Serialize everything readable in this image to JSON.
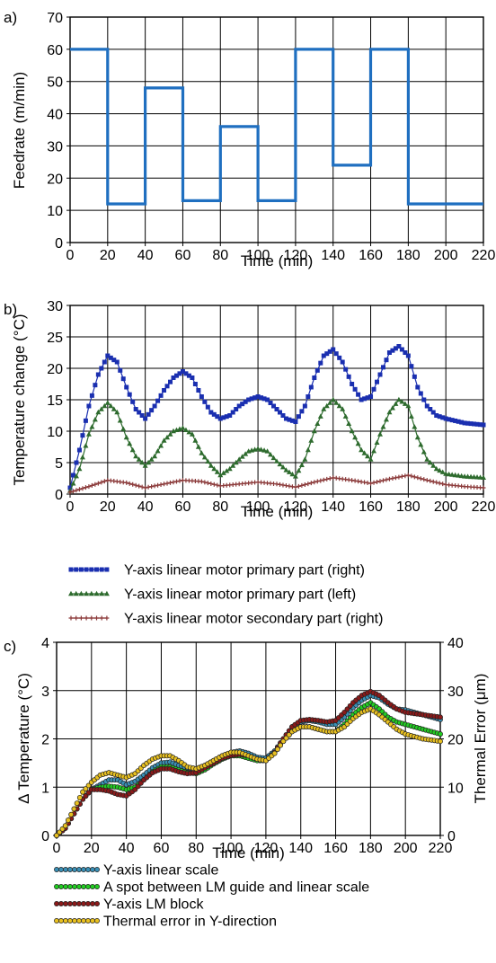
{
  "chart_data": [
    {
      "panel_label": "a)",
      "type": "line",
      "xlabel": "Time (min)",
      "ylabel": "Feedrate (m/min)",
      "xlim": [
        0,
        220
      ],
      "ylim": [
        0,
        70
      ],
      "xticks": [
        "0",
        "20",
        "40",
        "60",
        "80",
        "100",
        "120",
        "140",
        "160",
        "180",
        "200",
        "220"
      ],
      "yticks": [
        "0",
        "10",
        "20",
        "30",
        "40",
        "50",
        "60",
        "70"
      ],
      "grid": true,
      "series": [
        {
          "color": "#1f6fc0",
          "style": "step",
          "x": [
            0,
            20,
            20,
            40,
            40,
            60,
            60,
            80,
            80,
            100,
            100,
            120,
            120,
            140,
            140,
            160,
            160,
            180,
            180,
            220
          ],
          "y": [
            60,
            60,
            12,
            12,
            48,
            48,
            13,
            13,
            36,
            36,
            13,
            13,
            60,
            60,
            24,
            24,
            60,
            60,
            12,
            12
          ]
        }
      ]
    },
    {
      "panel_label": "b)",
      "type": "line",
      "xlabel": "Time (min)",
      "ylabel": "Temperature change (°C)",
      "xlim": [
        0,
        220
      ],
      "ylim": [
        0,
        30
      ],
      "xticks": [
        "0",
        "20",
        "40",
        "60",
        "80",
        "100",
        "120",
        "140",
        "160",
        "180",
        "200",
        "220"
      ],
      "yticks": [
        "0",
        "5",
        "10",
        "15",
        "20",
        "25",
        "30"
      ],
      "grid": true,
      "legend_position": "below",
      "series": [
        {
          "name": "Y-axis linear motor primary part (right)",
          "color": "#1a2fb0",
          "marker": "square",
          "x": [
            0,
            5,
            10,
            15,
            20,
            25,
            30,
            35,
            40,
            45,
            50,
            55,
            60,
            65,
            70,
            75,
            80,
            85,
            90,
            95,
            100,
            105,
            110,
            115,
            120,
            125,
            130,
            135,
            140,
            145,
            150,
            155,
            160,
            165,
            170,
            175,
            180,
            185,
            190,
            195,
            200,
            210,
            220
          ],
          "y": [
            1,
            7,
            14,
            19,
            22,
            21,
            17,
            13.5,
            12,
            14,
            16.5,
            18.5,
            19.5,
            18.5,
            15.5,
            13,
            12,
            12.5,
            14,
            15,
            15.5,
            15,
            13.5,
            12,
            11.5,
            14,
            18.5,
            22,
            23,
            21,
            17.5,
            15,
            15.5,
            19,
            22.5,
            23.5,
            22,
            17,
            14,
            12.5,
            12,
            11.3,
            11
          ]
        },
        {
          "name": "Y-axis linear motor primary part (left)",
          "color": "#2e6b2e",
          "marker": "triangle",
          "x": [
            0,
            5,
            10,
            15,
            20,
            25,
            30,
            35,
            40,
            45,
            50,
            55,
            60,
            65,
            70,
            75,
            80,
            85,
            90,
            95,
            100,
            105,
            110,
            115,
            120,
            125,
            130,
            135,
            140,
            145,
            150,
            155,
            160,
            165,
            170,
            175,
            180,
            185,
            190,
            195,
            200,
            210,
            220
          ],
          "y": [
            0.5,
            4,
            9.5,
            13,
            14.5,
            13,
            9,
            6,
            4.5,
            6,
            8.5,
            10,
            10.5,
            9.5,
            6.5,
            4.5,
            3,
            4,
            5.5,
            6.8,
            7.2,
            6.8,
            5.2,
            3.8,
            2.8,
            5.5,
            10,
            13.5,
            15,
            13.5,
            10,
            7,
            5.5,
            9.5,
            13,
            15,
            14,
            9,
            5.5,
            4,
            3.2,
            2.8,
            2.6
          ]
        },
        {
          "name": "Y-axis linear motor secondary part (right)",
          "color": "#8b3a3a",
          "marker": "plus",
          "x": [
            0,
            10,
            20,
            30,
            40,
            50,
            60,
            70,
            80,
            90,
            100,
            110,
            120,
            130,
            140,
            150,
            160,
            170,
            180,
            190,
            200,
            210,
            220
          ],
          "y": [
            0.3,
            1.2,
            2.2,
            1.8,
            1,
            1.6,
            2.2,
            2,
            1.3,
            1.6,
            1.9,
            1.6,
            1.1,
            1.9,
            2.6,
            2.2,
            1.7,
            2.4,
            3,
            2.2,
            1.5,
            1.2,
            1
          ]
        }
      ]
    },
    {
      "panel_label": "c)",
      "type": "line",
      "xlabel": "Time (min)",
      "ylabel": "Δ Temperature (°C)",
      "ylabel_right": "Thermal Error (μm)",
      "xlim": [
        0,
        220
      ],
      "ylim": [
        0,
        4
      ],
      "ylim_right": [
        0,
        40
      ],
      "xticks": [
        "0",
        "20",
        "40",
        "60",
        "80",
        "100",
        "120",
        "140",
        "160",
        "180",
        "200",
        "220"
      ],
      "yticks": [
        "0",
        "1",
        "2",
        "3",
        "4"
      ],
      "yticks_right": [
        "0",
        "10",
        "20",
        "30",
        "40"
      ],
      "grid": true,
      "legend_position": "below",
      "series": [
        {
          "name": "Y-axis linear scale",
          "color": "#3a8fb5",
          "marker": "circle",
          "x": [
            0,
            5,
            10,
            15,
            20,
            25,
            30,
            35,
            40,
            45,
            50,
            55,
            60,
            65,
            70,
            75,
            80,
            85,
            90,
            95,
            100,
            105,
            110,
            115,
            120,
            125,
            130,
            135,
            140,
            145,
            150,
            155,
            160,
            165,
            170,
            175,
            180,
            185,
            190,
            195,
            200,
            210,
            220
          ],
          "y": [
            0,
            0.15,
            0.45,
            0.75,
            0.95,
            1.05,
            1.15,
            1.15,
            1.05,
            1.12,
            1.25,
            1.4,
            1.5,
            1.52,
            1.45,
            1.4,
            1.38,
            1.45,
            1.55,
            1.65,
            1.72,
            1.75,
            1.7,
            1.62,
            1.6,
            1.75,
            2,
            2.25,
            2.35,
            2.38,
            2.35,
            2.3,
            2.3,
            2.45,
            2.65,
            2.8,
            2.9,
            2.85,
            2.72,
            2.62,
            2.6,
            2.5,
            2.4
          ]
        },
        {
          "name": "A spot between LM guide and linear scale",
          "color": "#22cc22",
          "marker": "circle",
          "x": [
            0,
            5,
            10,
            15,
            20,
            25,
            30,
            35,
            40,
            45,
            50,
            55,
            60,
            65,
            70,
            75,
            80,
            85,
            90,
            95,
            100,
            105,
            110,
            115,
            120,
            125,
            130,
            135,
            140,
            145,
            150,
            155,
            160,
            165,
            170,
            175,
            180,
            185,
            190,
            195,
            200,
            210,
            220
          ],
          "y": [
            0,
            0.15,
            0.45,
            0.75,
            0.95,
            1,
            1.02,
            1,
            0.95,
            1,
            1.15,
            1.32,
            1.42,
            1.42,
            1.36,
            1.3,
            1.28,
            1.36,
            1.48,
            1.58,
            1.65,
            1.65,
            1.6,
            1.55,
            1.55,
            1.72,
            1.95,
            2.15,
            2.25,
            2.25,
            2.2,
            2.15,
            2.15,
            2.3,
            2.5,
            2.65,
            2.75,
            2.62,
            2.45,
            2.35,
            2.3,
            2.2,
            2.1
          ]
        },
        {
          "name": "Y-axis LM block",
          "color": "#8b1a1a",
          "marker": "circle",
          "x": [
            0,
            5,
            10,
            15,
            20,
            25,
            30,
            35,
            40,
            45,
            50,
            55,
            60,
            65,
            70,
            75,
            80,
            85,
            90,
            95,
            100,
            105,
            110,
            115,
            120,
            125,
            130,
            135,
            140,
            145,
            150,
            155,
            160,
            165,
            170,
            175,
            180,
            185,
            190,
            195,
            200,
            210,
            220
          ],
          "y": [
            0,
            0.15,
            0.45,
            0.75,
            0.95,
            0.95,
            0.92,
            0.85,
            0.82,
            0.95,
            1.15,
            1.3,
            1.38,
            1.38,
            1.32,
            1.28,
            1.3,
            1.4,
            1.5,
            1.6,
            1.66,
            1.68,
            1.65,
            1.58,
            1.55,
            1.72,
            2,
            2.25,
            2.38,
            2.4,
            2.38,
            2.35,
            2.38,
            2.55,
            2.75,
            2.9,
            2.98,
            2.9,
            2.75,
            2.62,
            2.55,
            2.5,
            2.45
          ]
        },
        {
          "name": "Thermal error in Y-direction",
          "color": "#e8c020",
          "marker": "circle",
          "x": [
            0,
            5,
            10,
            15,
            20,
            25,
            30,
            35,
            40,
            45,
            50,
            55,
            60,
            65,
            70,
            75,
            80,
            85,
            90,
            95,
            100,
            105,
            110,
            115,
            120,
            125,
            130,
            135,
            140,
            145,
            150,
            155,
            160,
            165,
            170,
            175,
            180,
            185,
            190,
            195,
            200,
            210,
            220
          ],
          "y": [
            0,
            0.2,
            0.55,
            0.9,
            1.1,
            1.25,
            1.3,
            1.25,
            1.2,
            1.28,
            1.45,
            1.58,
            1.65,
            1.65,
            1.55,
            1.42,
            1.38,
            1.45,
            1.55,
            1.65,
            1.72,
            1.72,
            1.65,
            1.58,
            1.55,
            1.7,
            1.95,
            2.15,
            2.25,
            2.25,
            2.2,
            2.15,
            2.15,
            2.25,
            2.42,
            2.55,
            2.62,
            2.5,
            2.35,
            2.2,
            2.1,
            2,
            1.95
          ]
        }
      ]
    }
  ]
}
